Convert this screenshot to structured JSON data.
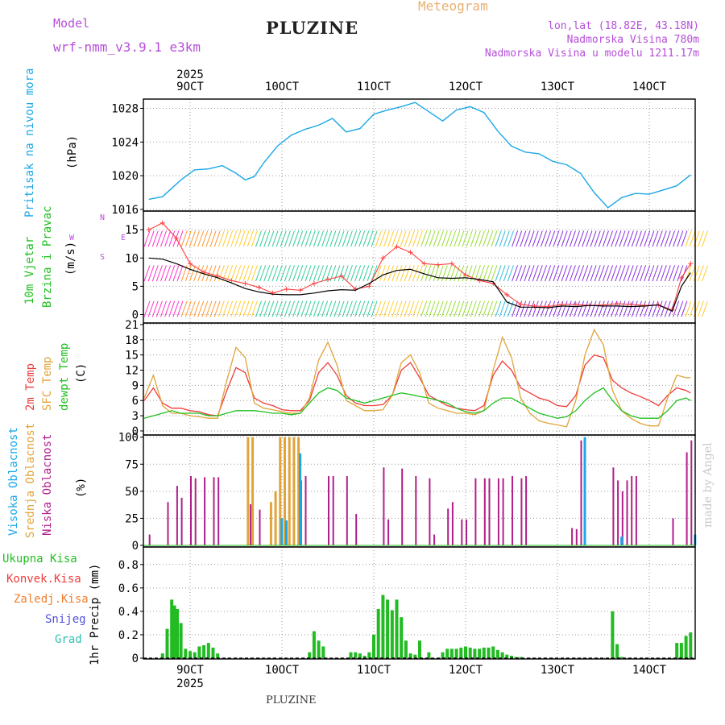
{
  "header": {
    "model_label": "Model",
    "model_name": "wrf-nmm_v3.9.1 e3km",
    "title": "PLUZINE",
    "meteogram_label": "Meteogram",
    "location": "lon,lat (18.82E, 43.18N)",
    "altitude": "Nadmorska Visina 780m",
    "model_altitude": "Nadmorska Visina u modelu 1211.17m"
  },
  "footer": {
    "station": "PLUZINE",
    "credit": "made by Angel"
  },
  "time_axis": {
    "year": "2025",
    "days": [
      "9OCT",
      "10OCT",
      "11OCT",
      "12OCT",
      "13OCT",
      "14OCT"
    ]
  },
  "colors": {
    "pressure": "#1ba8e6",
    "temp2m": "#ee3b3b",
    "sfc": "#e0a43a",
    "dewpt": "#20c020",
    "precip": "#22bb22",
    "lowcloud": "#b01f8a",
    "midcloud": "#e0a43a",
    "highcloud": "#1ba8e6"
  },
  "chart_data": [
    {
      "type": "line",
      "title": "Pritisak na nivou mora",
      "ylabel": "(hPa)",
      "ylim": [
        1016,
        1029
      ],
      "yticks": [
        "1016",
        "1020",
        "1024",
        "1028"
      ],
      "x_days": [
        8.55,
        8.7,
        8.9,
        9.05,
        9.2,
        9.35,
        9.5,
        9.6,
        9.7,
        9.8,
        9.95,
        10.1,
        10.25,
        10.4,
        10.55,
        10.7,
        10.85,
        11.0,
        11.15,
        11.3,
        11.45,
        11.6,
        11.75,
        11.9,
        12.05,
        12.2,
        12.35,
        12.5,
        12.65,
        12.8,
        12.95,
        13.1,
        13.25,
        13.4,
        13.55,
        13.7,
        13.85,
        14.0,
        14.15,
        14.3,
        14.45
      ],
      "values": [
        1017.2,
        1017.5,
        1019.5,
        1020.7,
        1020.8,
        1021.2,
        1020.3,
        1019.5,
        1019.9,
        1021.5,
        1023.5,
        1024.8,
        1025.5,
        1026.0,
        1026.8,
        1025.2,
        1025.6,
        1027.3,
        1027.8,
        1028.2,
        1028.7,
        1027.6,
        1026.5,
        1027.8,
        1028.2,
        1027.5,
        1025.3,
        1023.5,
        1022.8,
        1022.6,
        1021.7,
        1021.3,
        1020.3,
        1018.0,
        1016.2,
        1017.4,
        1017.9,
        1017.8,
        1018.3,
        1018.8,
        1020.1
      ]
    },
    {
      "type": "line",
      "title": "10m Vjetar Brzina i Pravac",
      "ylabel": "(m/s)",
      "ylim": [
        -1,
        18
      ],
      "yticks": [
        "0",
        "5",
        "10",
        "15"
      ],
      "legend": [
        "W",
        "E",
        "N",
        "S"
      ],
      "x_days": [
        8.55,
        8.7,
        8.85,
        9.0,
        9.15,
        9.3,
        9.45,
        9.6,
        9.75,
        9.9,
        10.05,
        10.2,
        10.35,
        10.5,
        10.65,
        10.8,
        10.95,
        11.1,
        11.25,
        11.4,
        11.55,
        11.7,
        11.85,
        12.0,
        12.15,
        12.3,
        12.45,
        12.6,
        12.75,
        12.9,
        13.05,
        13.2,
        13.35,
        13.5,
        13.65,
        13.8,
        13.95,
        14.1,
        14.25,
        14.35,
        14.45
      ],
      "series": [
        {
          "name": "speed",
          "values": [
            10.0,
            9.8,
            9.0,
            8.0,
            7.2,
            6.5,
            5.6,
            4.6,
            4.0,
            3.6,
            3.5,
            3.5,
            3.8,
            4.2,
            4.4,
            4.3,
            5.5,
            7.0,
            7.8,
            8.0,
            7.2,
            6.5,
            6.4,
            6.5,
            6.2,
            5.8,
            2.2,
            1.3,
            1.3,
            1.2,
            1.5,
            1.4,
            1.6,
            1.5,
            1.5,
            1.4,
            1.5,
            1.7,
            0.6,
            5.0,
            7.4
          ]
        },
        {
          "name": "gust",
          "values": [
            15.0,
            16.2,
            13.5,
            9.0,
            7.5,
            6.8,
            6.0,
            5.5,
            4.8,
            3.8,
            4.5,
            4.3,
            5.5,
            6.2,
            6.8,
            4.5,
            5.0,
            10.0,
            12.0,
            11.0,
            9.0,
            8.8,
            9.0,
            7.0,
            6.0,
            5.5,
            3.5,
            1.8,
            1.5,
            1.4,
            1.8,
            1.8,
            1.6,
            1.7,
            1.9,
            1.8,
            1.6,
            1.7,
            0.8,
            6.5,
            9.0
          ]
        }
      ]
    },
    {
      "type": "line",
      "title": "2m Temp / SFC Temp / dewpt Temp",
      "ylabel": "(C)",
      "ylim": [
        0,
        21
      ],
      "yticks": [
        "0",
        "3",
        "6",
        "9",
        "12",
        "15",
        "18",
        "21"
      ],
      "x_days": [
        8.5,
        8.6,
        8.7,
        8.8,
        8.9,
        9.0,
        9.1,
        9.2,
        9.3,
        9.4,
        9.5,
        9.6,
        9.7,
        9.8,
        9.9,
        10.0,
        10.1,
        10.2,
        10.3,
        10.4,
        10.5,
        10.6,
        10.7,
        10.8,
        10.9,
        11.0,
        11.1,
        11.2,
        11.3,
        11.4,
        11.5,
        11.6,
        11.7,
        11.8,
        11.9,
        12.0,
        12.1,
        12.2,
        12.3,
        12.4,
        12.5,
        12.6,
        12.7,
        12.8,
        12.9,
        13.0,
        13.1,
        13.2,
        13.3,
        13.4,
        13.5,
        13.6,
        13.7,
        13.8,
        13.9,
        14.0,
        14.1,
        14.2,
        14.3,
        14.4,
        14.45
      ],
      "series": [
        {
          "name": "2m Temp",
          "values": [
            6.0,
            8.5,
            5.5,
            4.5,
            4.5,
            4.0,
            3.8,
            3.2,
            3.0,
            8.0,
            12.5,
            11.5,
            6.5,
            5.5,
            5.0,
            4.2,
            4.0,
            4.0,
            6.0,
            11.5,
            13.5,
            11.0,
            7.0,
            5.5,
            5.0,
            5.0,
            5.2,
            7.0,
            12.0,
            13.5,
            10.5,
            7.0,
            6.0,
            5.0,
            4.5,
            4.2,
            4.0,
            5.0,
            11.0,
            13.8,
            12.0,
            8.5,
            7.5,
            6.5,
            6.0,
            5.0,
            4.8,
            7.0,
            13.0,
            15.0,
            14.5,
            10.0,
            8.5,
            7.5,
            6.8,
            6.0,
            5.0,
            7.0,
            8.5,
            8.0,
            7.5
          ]
        },
        {
          "name": "SFC Temp",
          "values": [
            6.5,
            11.0,
            5.0,
            3.5,
            3.5,
            3.0,
            2.8,
            2.5,
            2.5,
            10.0,
            16.5,
            14.5,
            5.5,
            4.5,
            4.2,
            3.8,
            3.5,
            3.5,
            6.5,
            14.0,
            17.5,
            13.0,
            6.0,
            5.0,
            4.0,
            4.0,
            4.2,
            7.0,
            13.5,
            15.0,
            11.5,
            5.5,
            4.5,
            4.0,
            3.5,
            3.5,
            3.2,
            4.0,
            12.0,
            18.5,
            14.5,
            6.5,
            3.5,
            2.0,
            1.5,
            1.2,
            0.8,
            6.0,
            15.0,
            20.0,
            17.0,
            8.0,
            4.0,
            2.5,
            1.5,
            1.0,
            1.0,
            6.5,
            11.0,
            10.5,
            10.5
          ]
        },
        {
          "name": "dewpt Temp",
          "values": [
            2.5,
            3.0,
            3.5,
            4.0,
            3.5,
            3.5,
            3.5,
            3.0,
            3.0,
            3.5,
            4.0,
            4.0,
            4.0,
            3.8,
            3.5,
            3.5,
            3.2,
            3.5,
            5.5,
            7.5,
            8.5,
            8.0,
            6.5,
            6.0,
            5.5,
            6.0,
            6.5,
            7.0,
            7.5,
            7.2,
            6.8,
            6.5,
            6.0,
            5.5,
            4.5,
            3.8,
            3.5,
            4.0,
            5.5,
            6.5,
            6.5,
            5.5,
            4.5,
            3.5,
            3.0,
            2.5,
            2.8,
            4.0,
            6.0,
            7.5,
            8.5,
            6.0,
            4.0,
            3.0,
            2.5,
            2.5,
            2.5,
            4.0,
            6.0,
            6.5,
            6.0
          ]
        }
      ]
    },
    {
      "type": "bar",
      "title": "Visoka Oblacnost / Srednja Oblacnost / Niska Oblacnost",
      "ylabel": "(%)",
      "ylim": [
        0,
        100
      ],
      "yticks": [
        "0",
        "25",
        "50",
        "75",
        "100"
      ],
      "series": [
        {
          "name": "Niska Oblacnost",
          "x_days": [
            8.55,
            8.75,
            8.85,
            8.9,
            9.0,
            9.05,
            9.15,
            9.25,
            9.3,
            9.65,
            9.75,
            10.2,
            10.25,
            10.5,
            10.55,
            10.7,
            10.8,
            11.1,
            11.15,
            11.3,
            11.45,
            11.6,
            11.65,
            11.8,
            11.85,
            11.95,
            12.0,
            12.1,
            12.2,
            12.25,
            12.35,
            12.4,
            12.5,
            12.6,
            12.65,
            13.15,
            13.2,
            13.25,
            13.6,
            13.65,
            13.7,
            13.75,
            13.8,
            13.85,
            14.25,
            14.4,
            14.45
          ],
          "values": [
            10,
            40,
            55,
            44,
            64,
            62,
            63,
            63,
            63,
            38,
            33,
            60,
            64,
            64,
            64,
            64,
            29,
            72,
            24,
            71,
            64,
            62,
            10,
            34,
            40,
            24,
            24,
            62,
            62,
            62,
            62,
            62,
            64,
            62,
            64,
            16,
            15,
            97,
            72,
            60,
            50,
            60,
            64,
            64,
            25,
            86,
            97
          ]
        },
        {
          "name": "Srednja Oblacnost",
          "x_days": [
            9.6,
            9.65,
            9.85,
            9.9,
            9.95,
            10.0,
            10.05,
            10.1,
            10.15
          ],
          "values": [
            100,
            100,
            40,
            50,
            100,
            100,
            100,
            100,
            100
          ]
        },
        {
          "name": "Visoka Oblacnost",
          "x_days": [
            9.95,
            10.0,
            10.15,
            13.25,
            13.65,
            14.45
          ],
          "values": [
            25,
            23,
            85,
            100,
            8,
            10
          ]
        }
      ]
    },
    {
      "type": "bar",
      "title": "1hr Precip",
      "ylabel": "1hr Precip (mm)",
      "ylim": [
        0,
        0.95
      ],
      "yticks": [
        "0",
        "0.2",
        "0.4",
        "0.6",
        "0.8"
      ],
      "legend": [
        "Ukupna Kisa",
        "Konvek.Kisa",
        "Zaledj.Kisa",
        "Snijeg",
        "Grad"
      ],
      "x_days": [
        8.7,
        8.75,
        8.8,
        8.83,
        8.86,
        8.9,
        8.95,
        9.0,
        9.05,
        9.1,
        9.15,
        9.2,
        9.25,
        9.3,
        10.3,
        10.35,
        10.4,
        10.45,
        10.75,
        10.8,
        10.85,
        10.9,
        10.95,
        11.0,
        11.05,
        11.1,
        11.15,
        11.2,
        11.25,
        11.3,
        11.35,
        11.4,
        11.45,
        11.5,
        11.6,
        11.75,
        11.8,
        11.85,
        11.9,
        11.95,
        12.0,
        12.05,
        12.1,
        12.15,
        12.2,
        12.25,
        12.3,
        12.35,
        12.4,
        12.45,
        12.5,
        12.55,
        12.6,
        13.6,
        13.65,
        13.7,
        14.3,
        14.35,
        14.4,
        14.45
      ],
      "values": [
        0.04,
        0.25,
        0.5,
        0.45,
        0.42,
        0.3,
        0.08,
        0.06,
        0.05,
        0.1,
        0.11,
        0.13,
        0.09,
        0.04,
        0.05,
        0.23,
        0.15,
        0.1,
        0.05,
        0.05,
        0.04,
        0.02,
        0.05,
        0.2,
        0.42,
        0.54,
        0.5,
        0.41,
        0.5,
        0.35,
        0.15,
        0.04,
        0.03,
        0.15,
        0.05,
        0.05,
        0.08,
        0.08,
        0.08,
        0.09,
        0.1,
        0.09,
        0.08,
        0.08,
        0.09,
        0.09,
        0.1,
        0.07,
        0.05,
        0.03,
        0.02,
        0.01,
        0.01,
        0.4,
        0.12,
        0.01,
        0.13,
        0.13,
        0.19,
        0.22
      ]
    }
  ]
}
